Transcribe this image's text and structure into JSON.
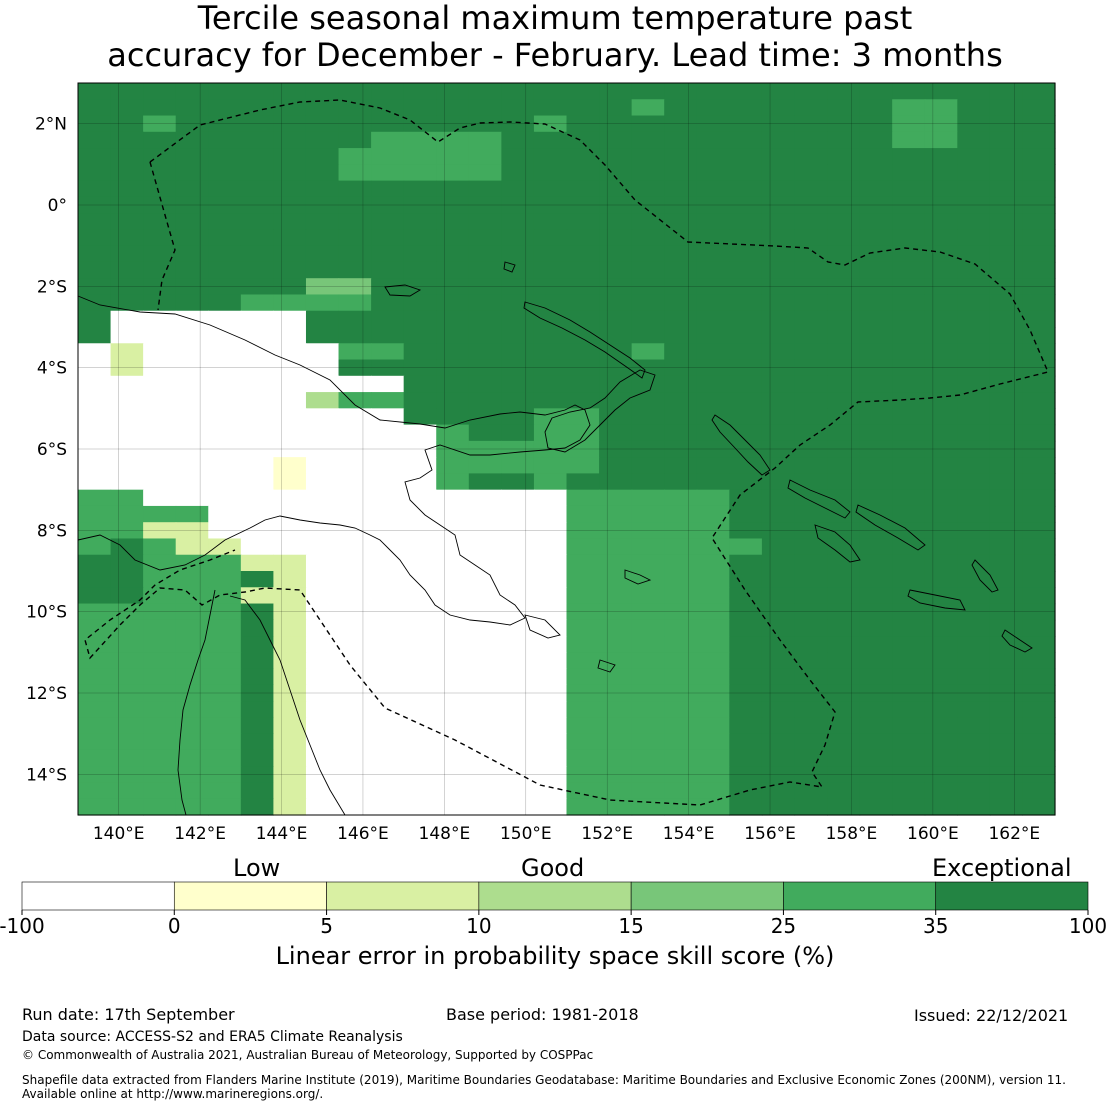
{
  "title": {
    "line1": "Tercile seasonal maximum temperature past",
    "line2": "accuracy for December - February. Lead time: 3 months"
  },
  "map": {
    "lon_range": [
      139,
      163
    ],
    "lat_range": [
      -15,
      3
    ],
    "lon_ticks": [
      "140°E",
      "142°E",
      "144°E",
      "146°E",
      "148°E",
      "150°E",
      "152°E",
      "154°E",
      "156°E",
      "158°E",
      "160°E",
      "162°E"
    ],
    "lat_ticks": [
      "2°N",
      "0°",
      "2°S",
      "4°S",
      "6°S",
      "8°S",
      "10°S",
      "12°S",
      "14°S"
    ],
    "skill_grid_rows": [
      "666666666666666666666666666666",
      "666666666666666665666666655666",
      "665666666666665666666666655666",
      "666666666555566666666666655666",
      "666666665555566666666666666666",
      "666666665555566666666666666666",
      "666666666666666666666666666666",
      "666666666666666666666666666666",
      "666666666666666666666666666666",
      "666666666666666666666666666666",
      "666666666666666666666666666666",
      "666666666666666666666666666666",
      "666666644666666666666666666666",
      "666665555666666666666666666666",
      "600000066666666666666666666666",
      "600000066666666666666666666666",
      "020000005566666665666666666666",
      "020000006666666666666666666666",
      "000000000066666666666666666666",
      "000000035566666666666666666666",
      "000000000066665566666666666666",
      "000000000005665566666666666666",
      "000000000005555566666666666666",
      "000000100005555566666666666666",
      "000000100005665666666666666666",
      "550000000000000555556666666666",
      "555500000000000555556666666666",
      "552200000000000555556666666666",
      "565220000000000555555666666666",
      "665552200000000555556666666666",
      "665556200000000555556666666666",
      "665552200000000555556666666666",
      "555556200000000555556666666666",
      "555556200000000555556666666666",
      "555556200000000555556666666666",
      "555556200000000555556666666666",
      "555556200000000555556666666666",
      "555556200000000555556666666666",
      "555556200000000555556666666666",
      "555556200000000555556666666666",
      "555556200000000555556666666666",
      "555556200000000555556666666666",
      "555556200000000555556666666666",
      "555556200000000555556666666666",
      "555556200000000555556666666666"
    ],
    "colors": {
      "land_outline": "#000000",
      "boundary": "#000000"
    }
  },
  "legend": {
    "category_labels": [
      "Low",
      "Good",
      "Exceptional"
    ],
    "tick_labels": [
      "-100",
      "0",
      "5",
      "10",
      "15",
      "25",
      "35",
      "100"
    ],
    "colors": [
      "#ffffff",
      "#ffffcc",
      "#d9f0a3",
      "#addd8e",
      "#78c679",
      "#41ab5d",
      "#238443"
    ],
    "axis_label": "Linear error in probability space skill score (%)"
  },
  "footer": {
    "run_date": "Run date: 17th September",
    "base_period": "Base period: 1981-2018",
    "issued": "Issued: 22/12/2021",
    "data_source": "Data source: ACCESS-S2 and ERA5 Climate Reanalysis",
    "copyright": "© Commonwealth of Australia 2021, Australian Bureau of Meteorology, Supported by COSPPac",
    "shapefile_line1": "Shapefile data extracted from Flanders Marine Institute (2019), Maritime Boundaries Geodatabase: Maritime Boundaries and Exclusive Economic Zones (200NM), version 11.",
    "shapefile_line2": "Available online at http://www.marineregions.org/."
  }
}
